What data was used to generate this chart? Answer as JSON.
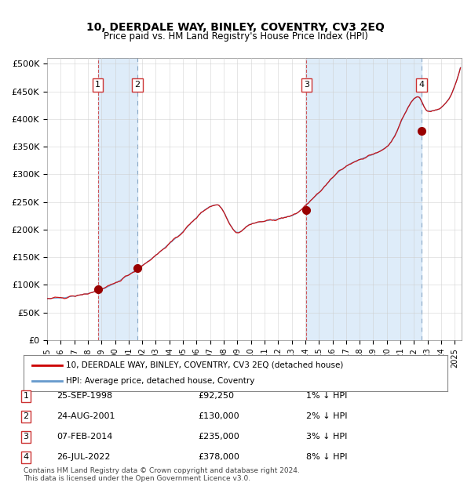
{
  "title": "10, DEERDALE WAY, BINLEY, COVENTRY, CV3 2EQ",
  "subtitle": "Price paid vs. HM Land Registry's House Price Index (HPI)",
  "ylabel": "",
  "background_color": "#ffffff",
  "plot_bg_color": "#ffffff",
  "grid_color": "#cccccc",
  "hpi_line_color": "#6699cc",
  "price_line_color": "#cc0000",
  "sale_marker_color": "#990000",
  "vline_colors": [
    "#cc0000",
    "#cc0000",
    "#cc0000",
    "#cc0000"
  ],
  "vline_styles": [
    "--",
    ":",
    "--",
    ":"
  ],
  "shade_color": "#d0e4f7",
  "yticks": [
    0,
    50000,
    100000,
    150000,
    200000,
    250000,
    300000,
    350000,
    400000,
    450000,
    500000
  ],
  "ylabels": [
    "£0",
    "£50K",
    "£100K",
    "£150K",
    "£200K",
    "£250K",
    "£300K",
    "£350K",
    "£400K",
    "£450K",
    "£500K"
  ],
  "ylim": [
    0,
    510000
  ],
  "xlim_start": 1995.0,
  "xlim_end": 2025.5,
  "sales": [
    {
      "num": 1,
      "date_num": 1998.73,
      "price": 92250,
      "label": "25-SEP-1998",
      "pct": "1%",
      "vline_style": "dashed",
      "vline_color": "#cc3333"
    },
    {
      "num": 2,
      "date_num": 2001.65,
      "price": 130000,
      "label": "24-AUG-2001",
      "pct": "2%",
      "vline_style": "dashed",
      "vline_color": "#6688aa"
    },
    {
      "num": 3,
      "date_num": 2014.09,
      "price": 235000,
      "label": "07-FEB-2014",
      "pct": "3%",
      "vline_style": "dashed",
      "vline_color": "#cc3333"
    },
    {
      "num": 4,
      "date_num": 2022.57,
      "price": 378000,
      "label": "26-JUL-2022",
      "pct": "8%",
      "vline_style": "dashed",
      "vline_color": "#6688aa"
    }
  ],
  "legend_line1": "10, DEERDALE WAY, BINLEY, COVENTRY, CV3 2EQ (detached house)",
  "legend_line2": "HPI: Average price, detached house, Coventry",
  "table_rows": [
    [
      "1",
      "25-SEP-1998",
      "£92,250",
      "1% ↓ HPI"
    ],
    [
      "2",
      "24-AUG-2001",
      "£130,000",
      "2% ↓ HPI"
    ],
    [
      "3",
      "07-FEB-2014",
      "£235,000",
      "3% ↓ HPI"
    ],
    [
      "4",
      "26-JUL-2022",
      "£378,000",
      "8% ↓ HPI"
    ]
  ],
  "footnote": "Contains HM Land Registry data © Crown copyright and database right 2024.\nThis data is licensed under the Open Government Licence v3.0."
}
